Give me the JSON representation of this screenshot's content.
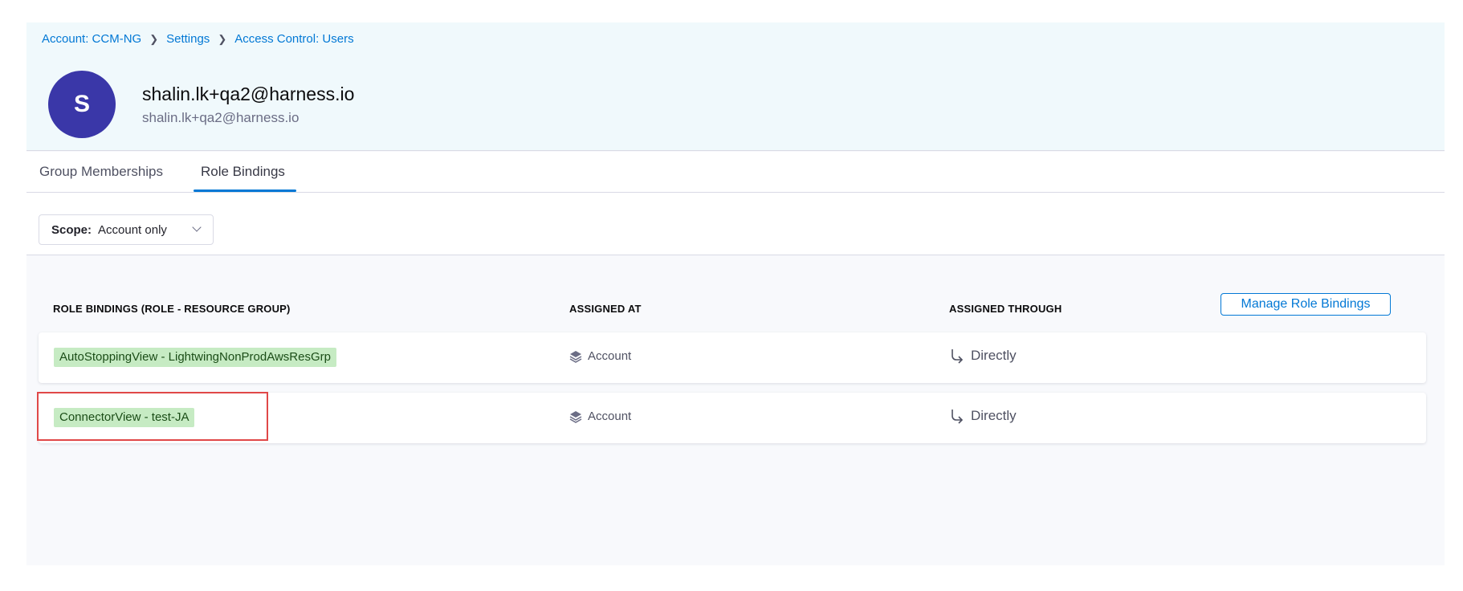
{
  "breadcrumb": [
    "Account: CCM-NG",
    "Settings",
    "Access Control: Users"
  ],
  "user": {
    "initial": "S",
    "name": "shalin.lk+qa2@harness.io",
    "email": "shalin.lk+qa2@harness.io"
  },
  "tabs": [
    {
      "label": "Group Memberships",
      "active": false
    },
    {
      "label": "Role Bindings",
      "active": true
    }
  ],
  "scope": {
    "label": "Scope:",
    "value": "Account only"
  },
  "table": {
    "columns": [
      "ROLE BINDINGS (ROLE - RESOURCE GROUP)",
      "ASSIGNED AT",
      "ASSIGNED THROUGH"
    ],
    "manage_label": "Manage Role Bindings",
    "rows": [
      {
        "binding": "AutoStoppingView - LightwingNonProdAwsResGrp",
        "assigned_at": "Account",
        "assigned_through": "Directly"
      },
      {
        "binding": "ConnectorView - test-JA",
        "assigned_at": "Account",
        "assigned_through": "Directly",
        "highlighted": true
      }
    ]
  },
  "colors": {
    "accent": "#0278d5",
    "avatar": "#3a37a8",
    "tag": "#c6ebc3",
    "highlight": "#e04848"
  }
}
